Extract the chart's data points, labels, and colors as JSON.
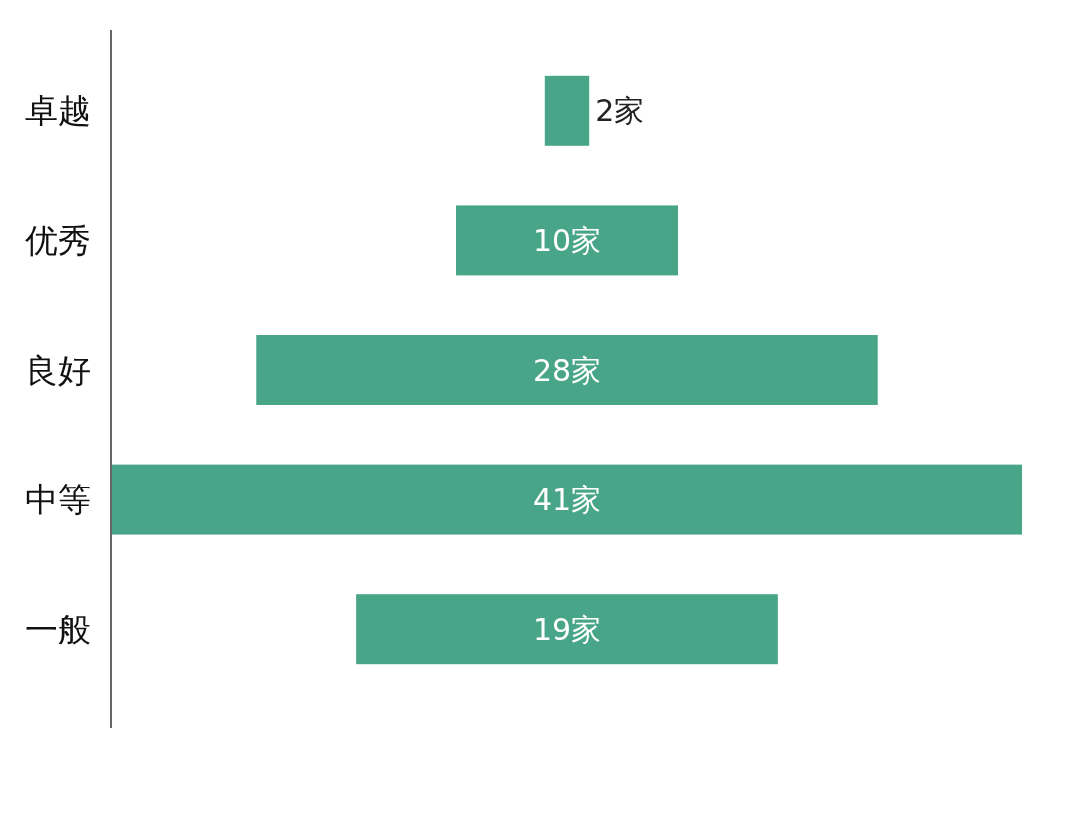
{
  "chart_data": {
    "type": "other",
    "categories": [
      "卓越",
      "优秀",
      "良好",
      "中等",
      "一般"
    ],
    "values": [
      2,
      10,
      28,
      41,
      19
    ],
    "value_labels": [
      "2家",
      "10家",
      "28家",
      "41家",
      "19家"
    ],
    "color": "#48a588"
  }
}
